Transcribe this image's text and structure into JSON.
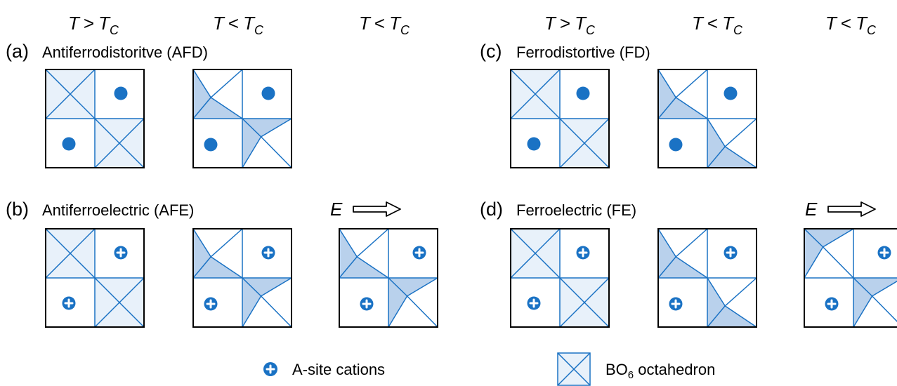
{
  "colors": {
    "blue": "#1a72c4",
    "light_fill": "#e8f1fa",
    "shade": "#b9d1ec",
    "frame": "#000000",
    "text": "#000000"
  },
  "temp_headers": {
    "greater": {
      "T": "T",
      "op": ">",
      "sub": "C"
    },
    "less": {
      "T": "T",
      "op": "<",
      "sub": "C"
    }
  },
  "panels": {
    "a": {
      "label": "(a)",
      "title": "Antiferrodistoritve (AFD)"
    },
    "b": {
      "label": "(b)",
      "title": "Antiferroelectric (AFE)"
    },
    "c": {
      "label": "(c)",
      "title": "Ferrodistortive (FD)"
    },
    "d": {
      "label": "(d)",
      "title": "Ferroelectric (FE)"
    }
  },
  "field": {
    "label": "E"
  },
  "legend": {
    "cations_label": "A-site cations",
    "octahedron_label_main": "BO",
    "octahedron_label_sub": "6",
    "octahedron_label_tail": " octahedron"
  }
}
